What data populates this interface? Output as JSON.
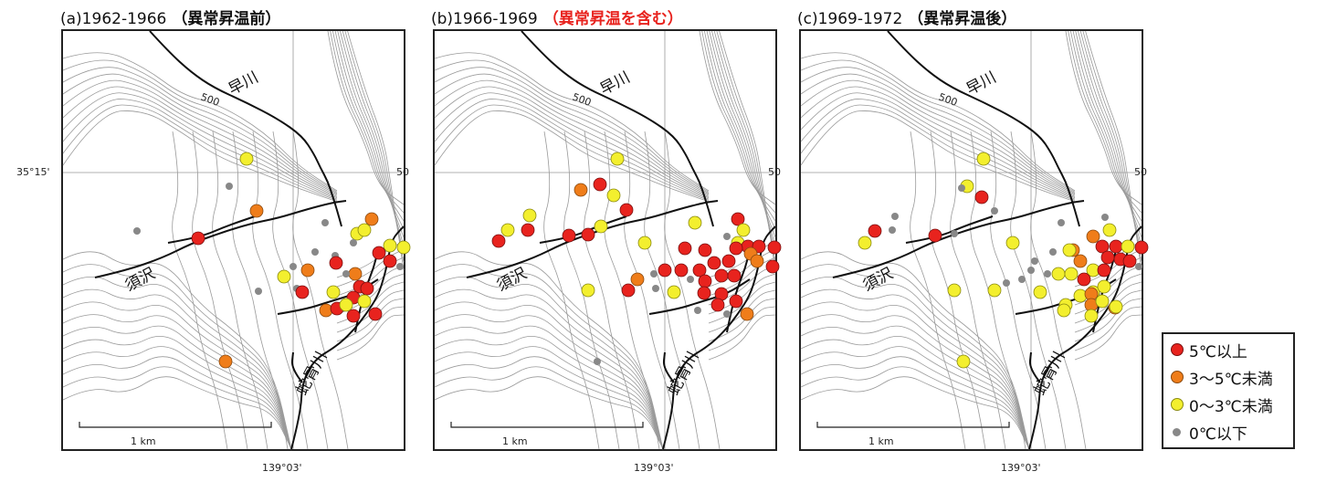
{
  "latitude_label": "35°15'",
  "longitude_label": "139°03'",
  "panels": [
    {
      "period": "(a)1962-1966",
      "note": "（異常昇温前）",
      "note_color": "#111111",
      "river_labels": {
        "hayakawa": "早川",
        "sunosawa": "須沢",
        "jakotsu": "蛇骨川"
      },
      "contour_500": "500",
      "contour_50": "50",
      "scale_label": "1 km"
    },
    {
      "period": "(b)1966-1969",
      "note": "（異常昇温を含む）",
      "note_color": "#e8231e",
      "river_labels": {
        "hayakawa": "早川",
        "sunosawa": "須沢",
        "jakotsu": "蛇骨川"
      },
      "contour_500": "500",
      "contour_50": "50",
      "scale_label": "1 km"
    },
    {
      "period": "(c)1969-1972",
      "note": "（異常昇温後）",
      "note_color": "#111111",
      "river_labels": {
        "hayakawa": "早川",
        "sunosawa": "須沢",
        "jakotsu": "蛇骨川"
      },
      "contour_500": "500",
      "contour_50": "50",
      "scale_label": "1 km"
    }
  ],
  "legend": [
    {
      "label": "5℃以上",
      "color": "#e8231e",
      "class": "5C-or-above"
    },
    {
      "label": "3～5℃未満",
      "color": "#ef7d1a",
      "class": "3-5C"
    },
    {
      "label": "0～3℃未満",
      "color": "#f3ef2e",
      "class": "0-3C"
    },
    {
      "label": "0℃以下",
      "color": "#888888",
      "class": "0C-or-below"
    }
  ],
  "colors": {
    "red": "#e8231e",
    "orange": "#ef7d1a",
    "yellow": "#f3ef2e",
    "gray": "#888888",
    "contour": "#9a9a9a",
    "river": "#111111"
  }
}
